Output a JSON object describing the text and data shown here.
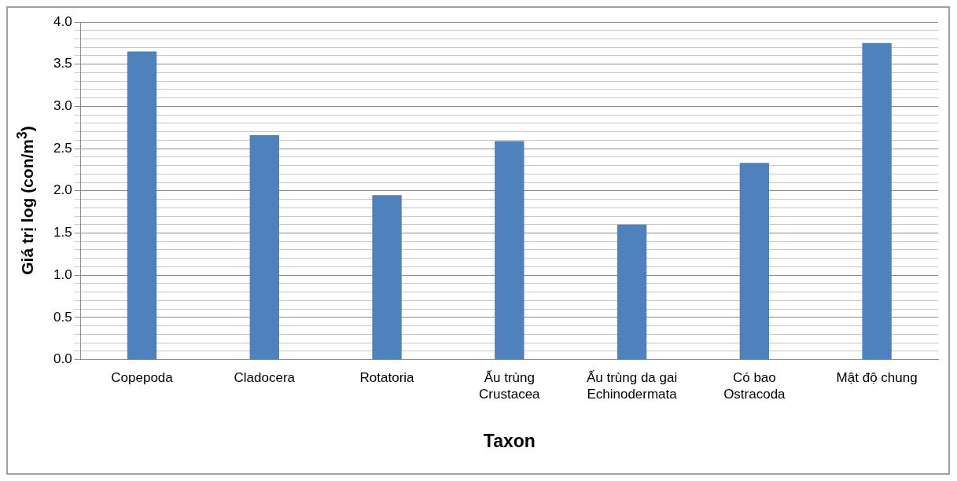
{
  "chart_data": {
    "type": "bar",
    "xlabel": "Taxon",
    "ylabel": "Giá trị log (con/m$^{3}$)",
    "categories": [
      "Copepoda",
      "Cladocera",
      "Rotatoria",
      "Ấu trùng Crustacea",
      "Ấu trùng da gai Echinodermata",
      "Có bao Ostracoda",
      "Mật độ chung"
    ],
    "values": [
      3.65,
      2.66,
      1.95,
      2.59,
      1.6,
      2.33,
      3.75
    ],
    "color": "#4f81bd",
    "ylim": [
      0,
      4
    ],
    "yticks": [
      {
        "value": 0,
        "label": "0.0"
      },
      {
        "value": 0.1,
        "label": null
      },
      {
        "value": 0.2,
        "label": null
      },
      {
        "value": 0.3,
        "label": null
      },
      {
        "value": 0.4,
        "label": null
      },
      {
        "value": 0.5,
        "label": "0.5"
      },
      {
        "value": 0.6,
        "label": null
      },
      {
        "value": 0.7,
        "label": null
      },
      {
        "value": 0.8,
        "label": null
      },
      {
        "value": 0.9,
        "label": null
      },
      {
        "value": 1,
        "label": "1.0"
      },
      {
        "value": 1.1,
        "label": null
      },
      {
        "value": 1.2,
        "label": null
      },
      {
        "value": 1.3,
        "label": null
      },
      {
        "value": 1.4,
        "label": null
      },
      {
        "value": 1.5,
        "label": "1.5"
      },
      {
        "value": 1.6,
        "label": null
      },
      {
        "value": 1.7,
        "label": null
      },
      {
        "value": 1.8,
        "label": null
      },
      {
        "value": 1.9,
        "label": null
      },
      {
        "value": 2,
        "label": "2.0"
      },
      {
        "value": 2.1,
        "label": null
      },
      {
        "value": 2.2,
        "label": null
      },
      {
        "value": 2.3,
        "label": null
      },
      {
        "value": 2.4,
        "label": null
      },
      {
        "value": 2.5,
        "label": "2.5"
      },
      {
        "value": 2.6,
        "label": null
      },
      {
        "value": 2.7,
        "label": null
      },
      {
        "value": 2.8,
        "label": null
      },
      {
        "value": 2.9,
        "label": null
      },
      {
        "value": 3,
        "label": "3.0"
      },
      {
        "value": 3.1,
        "label": null
      },
      {
        "value": 3.2,
        "label": null
      },
      {
        "value": 3.3,
        "label": null
      },
      {
        "value": 3.4,
        "label": null
      },
      {
        "value": 3.5,
        "label": "3.5"
      },
      {
        "value": 3.6,
        "label": null
      },
      {
        "value": 3.7,
        "label": null
      },
      {
        "value": 3.8,
        "label": null
      },
      {
        "value": 3.9,
        "label": null
      },
      {
        "value": 4,
        "label": "4.0"
      }
    ],
    "grid": "y"
  }
}
